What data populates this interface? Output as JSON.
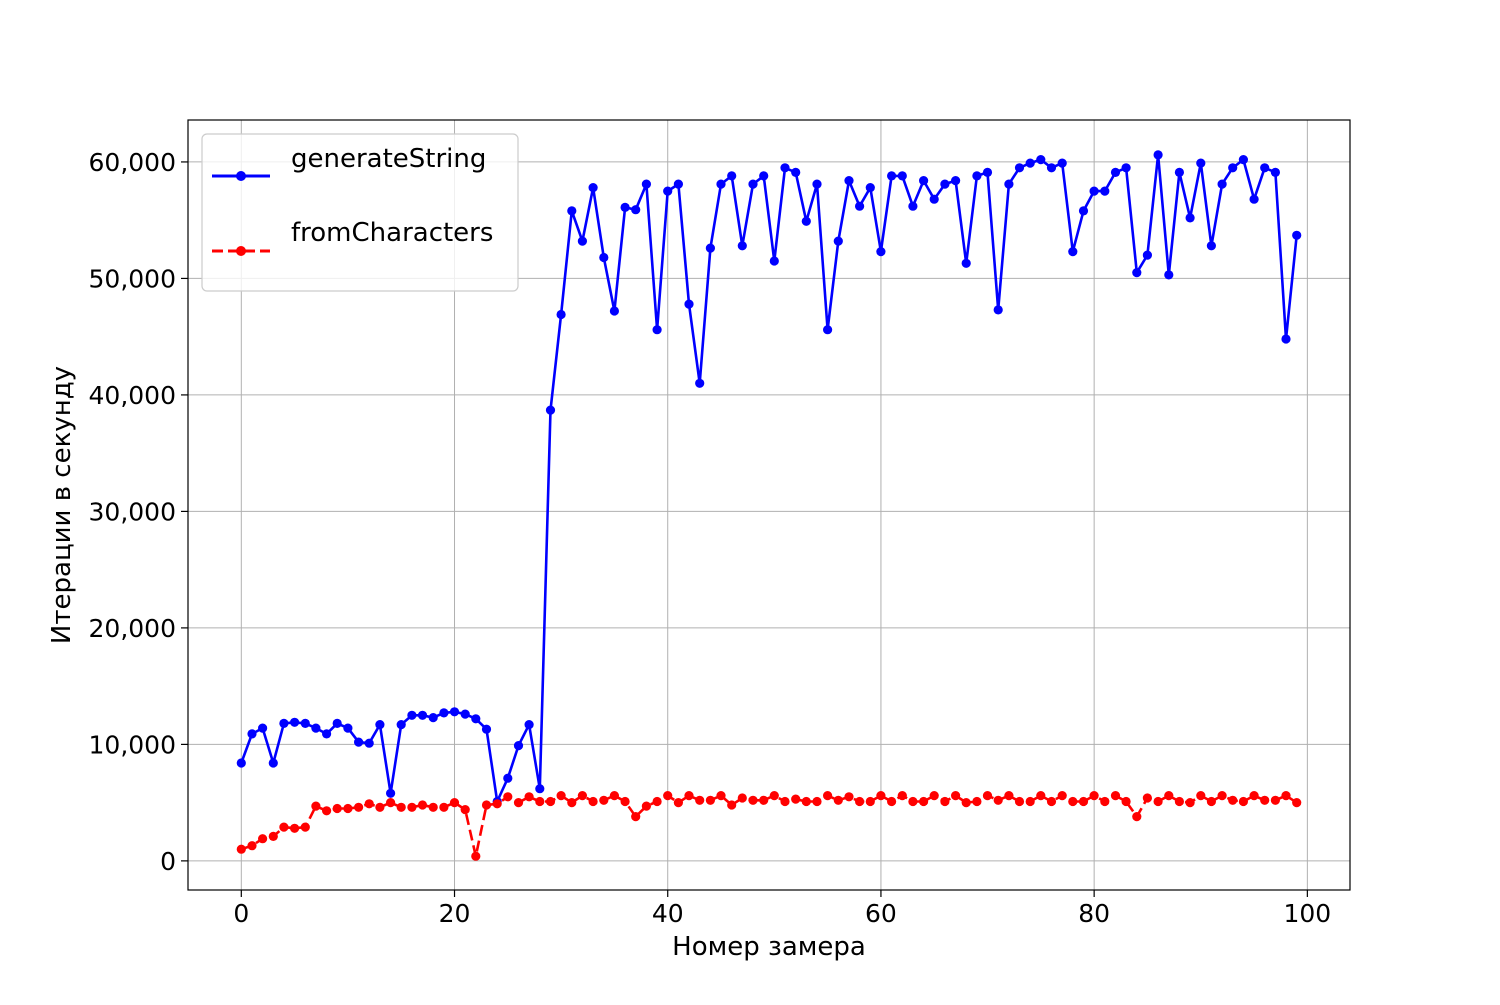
{
  "chart_data": {
    "type": "line",
    "title": "",
    "xlabel": "Номер замера",
    "ylabel": "Итерации в секунду",
    "xlim": [
      -5,
      104
    ],
    "ylim": [
      -2500,
      63600
    ],
    "xticks": [
      0,
      20,
      40,
      60,
      80,
      100
    ],
    "xtick_labels": [
      "0",
      "20",
      "40",
      "60",
      "80",
      "100"
    ],
    "yticks": [
      0,
      10000,
      20000,
      30000,
      40000,
      50000,
      60000
    ],
    "ytick_labels": [
      "0",
      "10,000",
      "20,000",
      "30,000",
      "40,000",
      "50,000",
      "60,000"
    ],
    "grid": true,
    "legend_position": "top-left",
    "x": [
      0,
      1,
      2,
      3,
      4,
      5,
      6,
      7,
      8,
      9,
      10,
      11,
      12,
      13,
      14,
      15,
      16,
      17,
      18,
      19,
      20,
      21,
      22,
      23,
      24,
      25,
      26,
      27,
      28,
      29,
      30,
      31,
      32,
      33,
      34,
      35,
      36,
      37,
      38,
      39,
      40,
      41,
      42,
      43,
      44,
      45,
      46,
      47,
      48,
      49,
      50,
      51,
      52,
      53,
      54,
      55,
      56,
      57,
      58,
      59,
      60,
      61,
      62,
      63,
      64,
      65,
      66,
      67,
      68,
      69,
      70,
      71,
      72,
      73,
      74,
      75,
      76,
      77,
      78,
      79,
      80,
      81,
      82,
      83,
      84,
      85,
      86,
      87,
      88,
      89,
      90,
      91,
      92,
      93,
      94,
      95,
      96,
      97,
      98,
      99
    ],
    "series": [
      {
        "name": "generateString",
        "color": "#0000ff",
        "line_style": "solid",
        "values": [
          8400,
          10900,
          11400,
          8400,
          11800,
          11900,
          11800,
          11400,
          10900,
          11800,
          11400,
          10200,
          10100,
          11700,
          5800,
          11700,
          12500,
          12500,
          12300,
          12700,
          12800,
          12600,
          12200,
          11300,
          5100,
          7100,
          9900,
          11700,
          6200,
          38700,
          46900,
          55800,
          53200,
          57800,
          51800,
          47200,
          56100,
          55900,
          58100,
          45600,
          57500,
          58100,
          47800,
          41000,
          52600,
          58100,
          58800,
          52800,
          58100,
          58800,
          51500,
          59500,
          59100,
          54900,
          58100,
          45600,
          53200,
          58400,
          56200,
          57800,
          52300,
          58800,
          58800,
          56200,
          58400,
          56800,
          58100,
          58400,
          51300,
          58800,
          59100,
          47300,
          58100,
          59500,
          59900,
          60200,
          59500,
          59900,
          52300,
          55800,
          57500,
          57500,
          59100,
          59500,
          50500,
          52000,
          60600,
          50300,
          59100,
          55200,
          59900,
          52800,
          58100,
          59500,
          60200,
          56800,
          59500,
          59100,
          44800,
          53700
        ]
      },
      {
        "name": "fromCharacters",
        "color": "#ff0000",
        "line_style": "dashed",
        "values": [
          1000,
          1300,
          1900,
          2100,
          2900,
          2800,
          2900,
          4700,
          4300,
          4500,
          4500,
          4600,
          4900,
          4600,
          5000,
          4600,
          4600,
          4800,
          4600,
          4600,
          5000,
          4400,
          400,
          4800,
          4900,
          5500,
          5000,
          5500,
          5100,
          5100,
          5600,
          5000,
          5600,
          5100,
          5200,
          5600,
          5100,
          3800,
          4700,
          5100,
          5600,
          5000,
          5600,
          5200,
          5200,
          5600,
          4800,
          5400,
          5200,
          5200,
          5600,
          5100,
          5300,
          5100,
          5100,
          5600,
          5200,
          5500,
          5100,
          5100,
          5600,
          5100,
          5600,
          5100,
          5100,
          5600,
          5100,
          5600,
          5000,
          5100,
          5600,
          5200,
          5600,
          5100,
          5100,
          5600,
          5100,
          5600,
          5100,
          5100,
          5600,
          5100,
          5600,
          5100,
          3800,
          5400,
          5100,
          5600,
          5100,
          5000,
          5600,
          5100,
          5600,
          5200,
          5100,
          5600,
          5200,
          5200,
          5600,
          5000
        ]
      }
    ]
  }
}
